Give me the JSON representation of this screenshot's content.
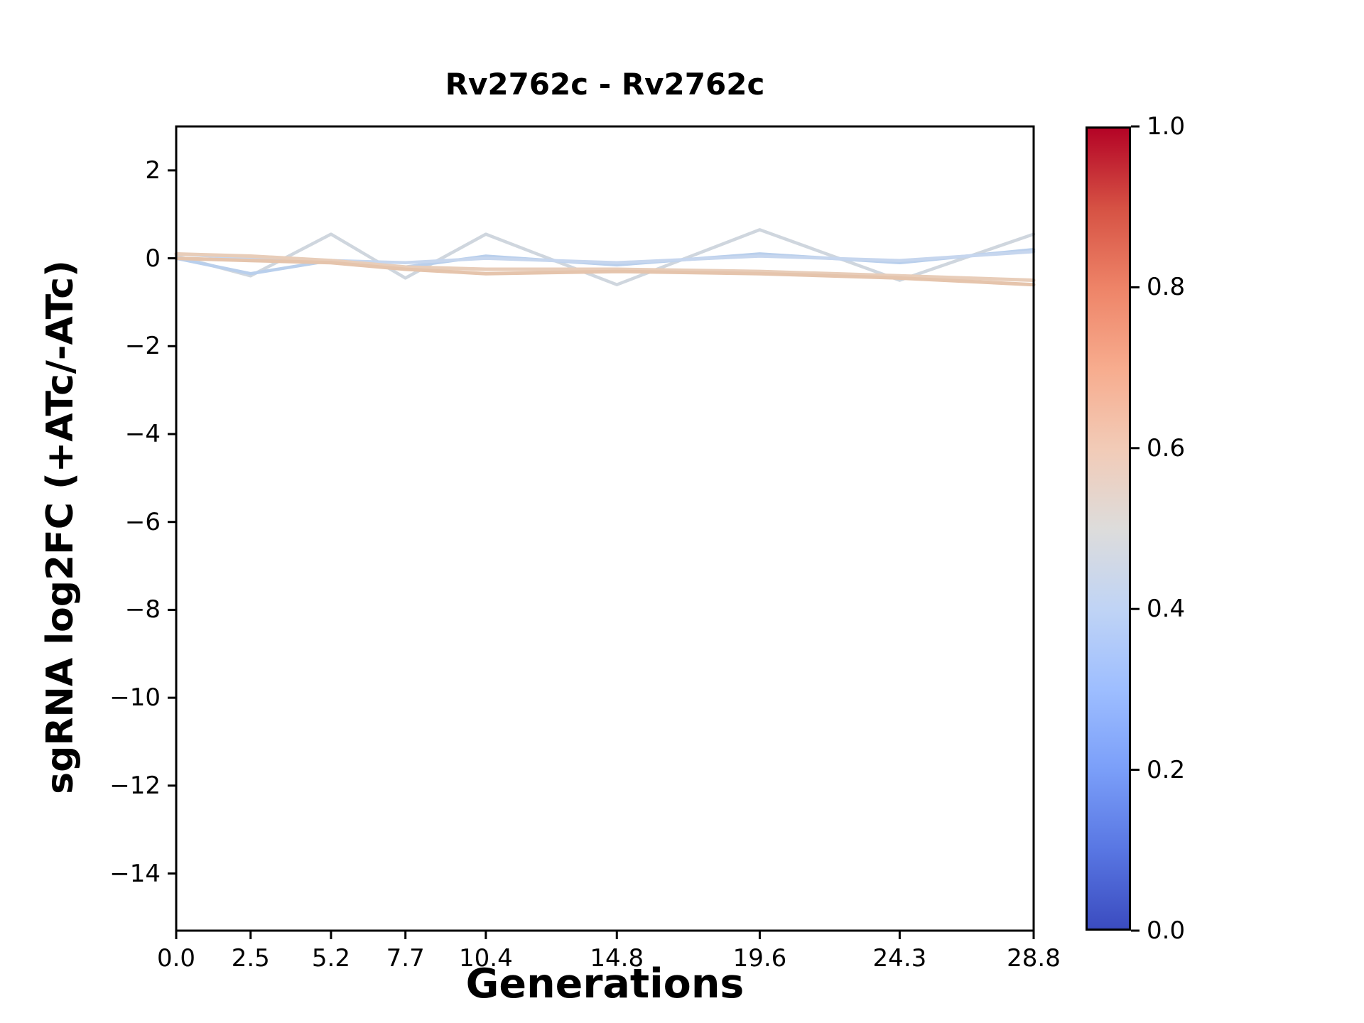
{
  "chart_data": {
    "type": "line",
    "title": "Rv2762c - Rv2762c",
    "xlabel": "Generations",
    "ylabel": "sgRNA log2FC (+ATc/-ATc)",
    "grid": false,
    "legend": false,
    "xlim": [
      0.0,
      28.8
    ],
    "ylim": [
      -15.3,
      3.0
    ],
    "x": [
      0.0,
      2.5,
      5.2,
      7.7,
      10.4,
      14.8,
      19.6,
      24.3,
      28.8
    ],
    "xtick_labels": [
      "0.0",
      "2.5",
      "5.2",
      "7.7",
      "10.4",
      "14.8",
      "19.6",
      "24.3",
      "28.8"
    ],
    "ytick_values": [
      2,
      0,
      -2,
      -4,
      -6,
      -8,
      -10,
      -12,
      -14
    ],
    "ytick_labels": [
      "2",
      "0",
      "−2",
      "−4",
      "−6",
      "−8",
      "−10",
      "−12",
      "−14"
    ],
    "series": [
      {
        "color": "#cfd6de",
        "width": 4.5,
        "values": [
          0.05,
          -0.4,
          0.55,
          -0.45,
          0.55,
          -0.6,
          0.65,
          -0.5,
          0.55
        ]
      },
      {
        "color": "#b9cfec",
        "width": 4.5,
        "values": [
          0.0,
          -0.35,
          -0.05,
          -0.2,
          0.05,
          -0.15,
          0.1,
          -0.1,
          0.2
        ]
      },
      {
        "color": "#c6d6ee",
        "width": 4.5,
        "values": [
          0.1,
          0.0,
          -0.05,
          -0.1,
          0.0,
          -0.1,
          0.05,
          -0.05,
          0.15
        ]
      },
      {
        "color": "#e8cdb9",
        "width": 5,
        "values": [
          0.1,
          0.05,
          -0.05,
          -0.2,
          -0.25,
          -0.25,
          -0.3,
          -0.4,
          -0.5
        ]
      },
      {
        "color": "#e5c4ac",
        "width": 5,
        "values": [
          0.0,
          -0.05,
          -0.1,
          -0.25,
          -0.35,
          -0.3,
          -0.35,
          -0.45,
          -0.6
        ]
      }
    ],
    "colorbar": {
      "orientation": "vertical",
      "colormap": "coolwarm",
      "min": 0.0,
      "max": 1.0,
      "tick_values": [
        1.0,
        0.8,
        0.6,
        0.4,
        0.2,
        0.0
      ],
      "tick_labels": [
        "1.0",
        "0.8",
        "0.6",
        "0.4",
        "0.2",
        "0.0"
      ],
      "stops_bottom_to_top": [
        "#3b4cc0",
        "#5977e3",
        "#7b9ff9",
        "#9ebeff",
        "#c0d4f5",
        "#dddcdb",
        "#f2cbb7",
        "#f7ac8e",
        "#ee8468",
        "#d65244",
        "#b40426"
      ]
    }
  }
}
